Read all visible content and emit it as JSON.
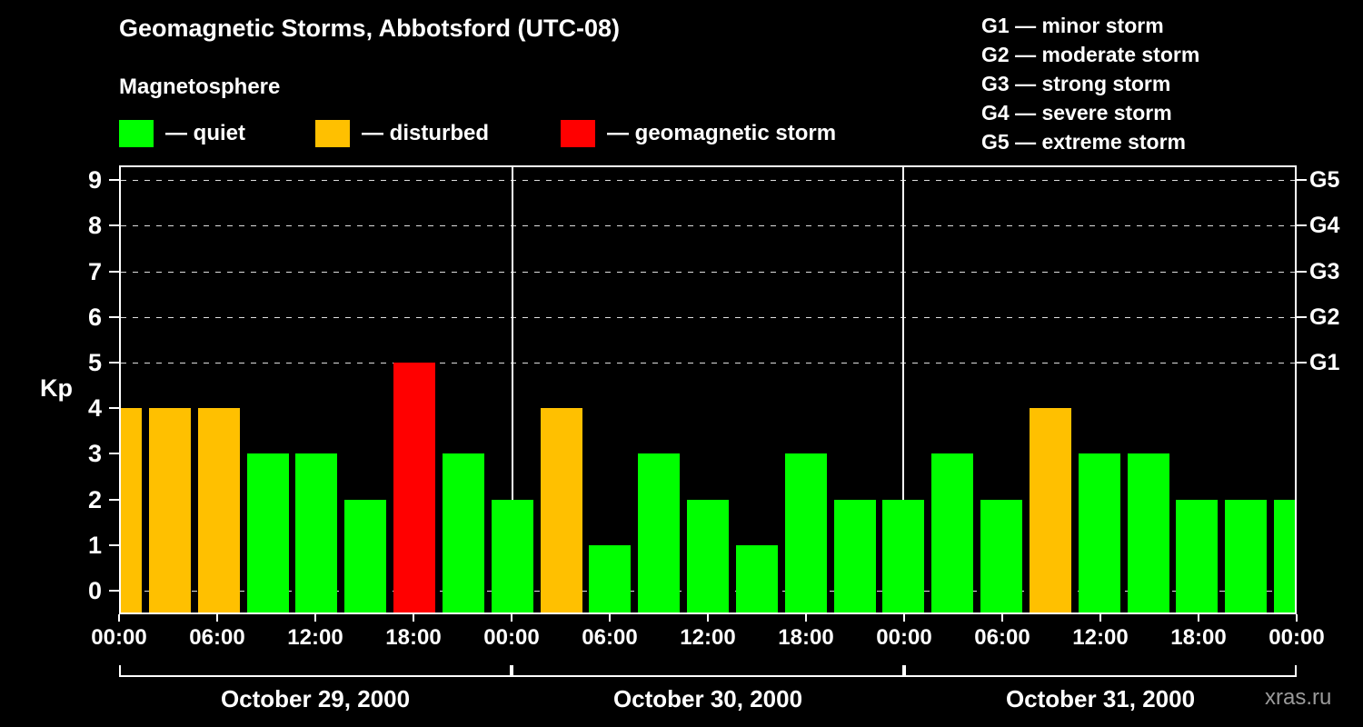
{
  "header": {
    "title": "Geomagnetic Storms, Abbotsford (UTC-08)"
  },
  "legend": {
    "title": "Magnetosphere",
    "items": [
      {
        "name": "quiet",
        "label": "— quiet",
        "color": "#00ff00"
      },
      {
        "name": "disturbed",
        "label": "— disturbed",
        "color": "#ffc000"
      },
      {
        "name": "storm",
        "label": "— geomagnetic storm",
        "color": "#ff0000"
      }
    ]
  },
  "g_legend": {
    "lines": [
      "G1 — minor storm",
      "G2 — moderate storm",
      "G3 — strong storm",
      "G4 — severe storm",
      "G5 — extreme storm"
    ]
  },
  "footer": {
    "watermark": "xras.ru"
  },
  "chart_data": {
    "type": "bar",
    "title": "Geomagnetic Storms, Abbotsford (UTC-08)",
    "xlabel": "",
    "ylabel": "Kp",
    "ylim": [
      0,
      9.8
    ],
    "y_ticks": [
      0,
      1,
      2,
      3,
      4,
      5,
      6,
      7,
      8,
      9
    ],
    "right_axis": [
      {
        "kp": 5,
        "label": "G1"
      },
      {
        "kp": 6,
        "label": "G2"
      },
      {
        "kp": 7,
        "label": "G3"
      },
      {
        "kp": 8,
        "label": "G4"
      },
      {
        "kp": 9,
        "label": "G5"
      }
    ],
    "gridline_kp": [
      0,
      5,
      6,
      7,
      8,
      9
    ],
    "x_tick_labels": [
      "00:00",
      "06:00",
      "12:00",
      "18:00",
      "00:00",
      "06:00",
      "12:00",
      "18:00",
      "00:00",
      "06:00",
      "12:00",
      "18:00",
      "00:00"
    ],
    "interval_hours": 3,
    "bar_alignment": "centered-on-tick",
    "days": [
      {
        "label": "October 29, 2000",
        "kp": [
          4,
          4,
          4,
          3,
          3,
          2,
          5,
          3
        ]
      },
      {
        "label": "October 30, 2000",
        "kp": [
          2,
          4,
          1,
          3,
          2,
          1,
          3,
          2
        ]
      },
      {
        "label": "October 31, 2000",
        "kp": [
          2,
          3,
          2,
          4,
          3,
          3,
          2,
          2
        ]
      }
    ],
    "trailing_kp": 2,
    "colors": {
      "quiet": "#00ff00",
      "disturbed": "#ffc000",
      "storm": "#ff0000"
    },
    "thresholds": {
      "disturbed_min": 4,
      "storm_min": 5
    },
    "legend_position": "top",
    "grid": "dashed horizontal at storm levels"
  }
}
